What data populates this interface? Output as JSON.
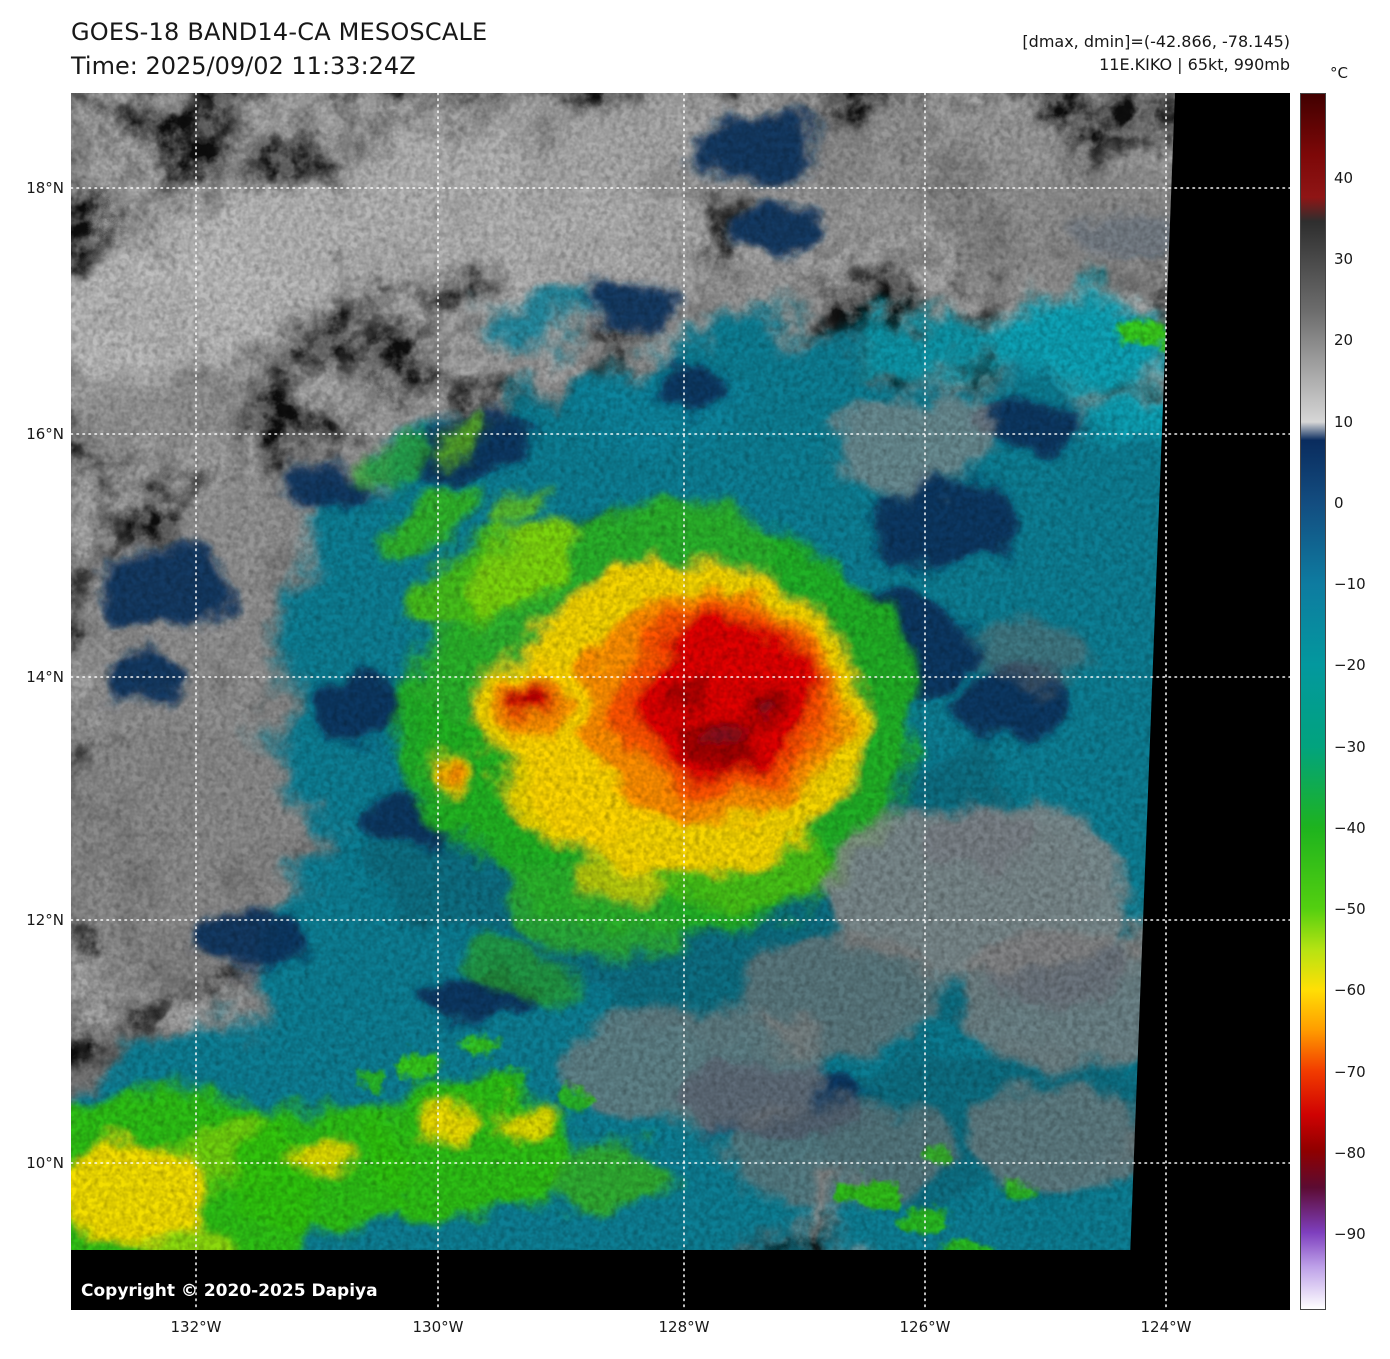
{
  "header": {
    "title": "GOES-18 BAND14-CA MESOSCALE",
    "time": "Time: 2025/09/02 11:33:24Z",
    "dmax_dmin": "[dmax, dmin]=(-42.866, -78.145)",
    "storm": "11E.KIKO | 65kt, 990mb"
  },
  "axes": {
    "lat_labels": [
      "18°N",
      "16°N",
      "14°N",
      "12°N",
      "10°N"
    ],
    "lon_labels": [
      "132°W",
      "130°W",
      "128°W",
      "126°W",
      "124°W"
    ]
  },
  "colorbar": {
    "unit": "°C",
    "ticks": [
      "40",
      "30",
      "20",
      "10",
      "0",
      "−10",
      "−20",
      "−30",
      "−40",
      "−50",
      "−60",
      "−70",
      "−80",
      "−90"
    ]
  },
  "map": {
    "copyright": "Copyright © 2020-2025 Dapiya"
  },
  "palette": {
    "cold_core_red": "#e00000",
    "deep_convection_orange": "#ff8c00",
    "convection_yellow": "#ffd700",
    "convection_green": "#23b423",
    "cirrus_teal": "#0c7f95",
    "navy_cloud": "#0a3560",
    "warm_background": "#0e0e0e"
  }
}
